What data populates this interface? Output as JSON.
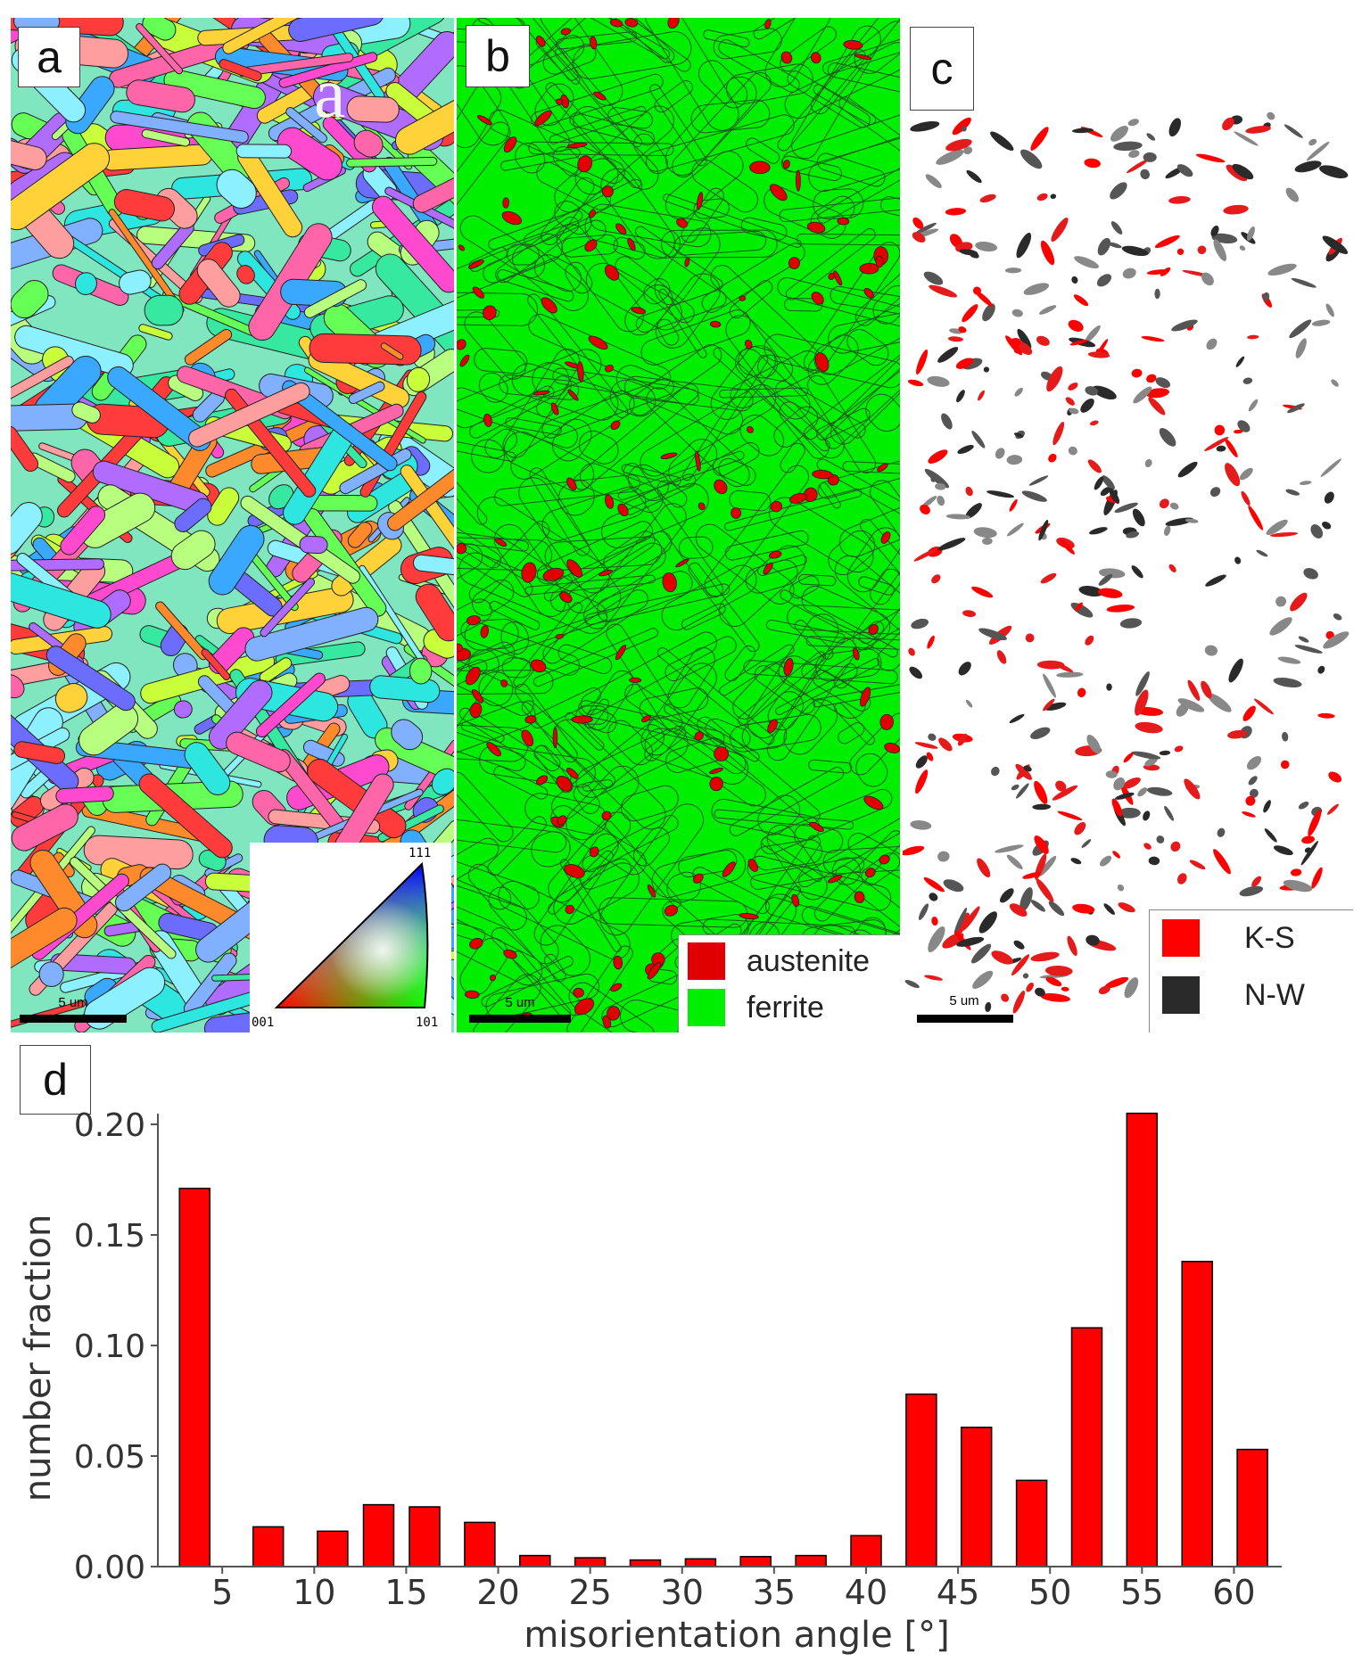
{
  "panels": {
    "a": {
      "letter": "a",
      "overlay_letter": "a",
      "scale_label": "5 um",
      "ipf_labels": {
        "top": "111",
        "left": "001",
        "right": "101"
      }
    },
    "b": {
      "letter": "b",
      "scale_label": "5 um",
      "legend": [
        {
          "label": "austenite",
          "color": "#e00000"
        },
        {
          "label": "ferrite",
          "color": "#00ee00"
        }
      ]
    },
    "c": {
      "letter": "c",
      "scale_label": "5 um",
      "legend": [
        {
          "label": "K-S",
          "color": "#ff0000"
        },
        {
          "label": "N-W",
          "color": "#2a2a2a"
        }
      ]
    },
    "d": {
      "letter": "d"
    }
  },
  "colors": {
    "bar": "#ff0000",
    "austenite": "#e00000",
    "ferrite": "#00ee00",
    "grain_boundary": "#1a1a1a"
  },
  "chart_data": {
    "type": "bar",
    "xlabel": "misorientation angle [°]",
    "ylabel": "number fraction",
    "xlim": [
      1.5,
      62.5
    ],
    "ylim": [
      0,
      0.2
    ],
    "xticks": [
      5,
      10,
      15,
      20,
      25,
      30,
      35,
      40,
      45,
      50,
      55,
      60
    ],
    "yticks": [
      "0.00",
      "0.05",
      "0.10",
      "0.15",
      "0.20"
    ],
    "x": [
      3.5,
      7.5,
      11,
      13.5,
      16,
      19,
      22,
      25,
      28,
      31,
      34,
      37,
      40,
      43,
      46,
      49,
      52,
      55,
      58,
      61
    ],
    "values": [
      0.171,
      0.018,
      0.016,
      0.028,
      0.027,
      0.02,
      0.005,
      0.004,
      0.003,
      0.0035,
      0.0045,
      0.005,
      0.014,
      0.078,
      0.063,
      0.039,
      0.108,
      0.205,
      0.138,
      0.053
    ]
  }
}
